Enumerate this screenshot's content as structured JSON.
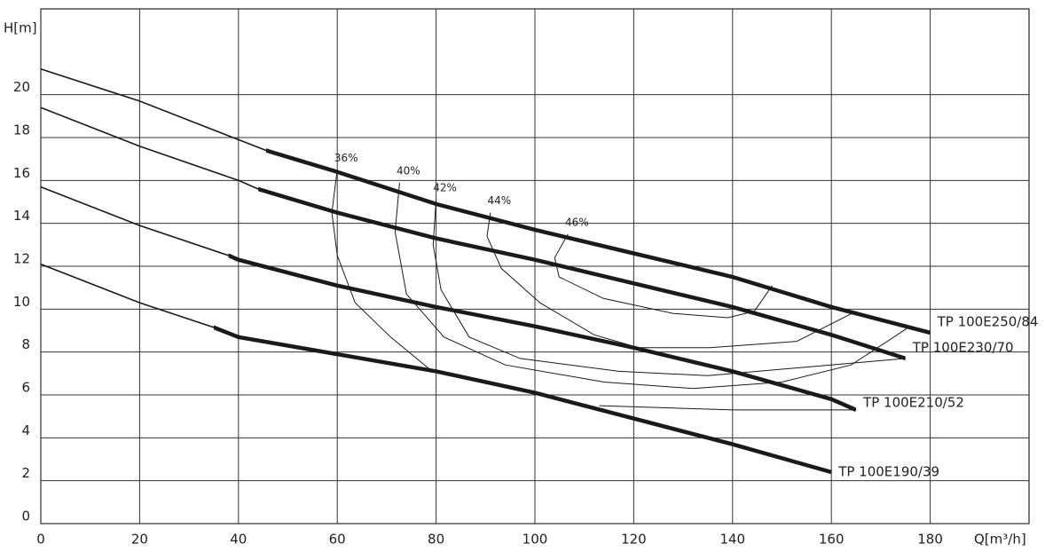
{
  "chart_data": {
    "type": "line",
    "y_label": "H[m]",
    "x_label": "Q[m³/h]",
    "xlim": [
      0,
      200
    ],
    "ylim": [
      0,
      24
    ],
    "xticks": [
      0,
      20,
      40,
      60,
      80,
      100,
      120,
      140,
      160,
      180
    ],
    "yticks": [
      0,
      2,
      4,
      6,
      8,
      10,
      12,
      14,
      16,
      18,
      20
    ],
    "grid": true,
    "color": "#1a1a1a",
    "series": [
      {
        "name": "TP 100E250/84",
        "x": [
          0,
          20,
          40,
          45.6,
          60,
          80,
          100,
          120,
          140,
          160,
          180
        ],
        "values": [
          21.2,
          19.7,
          17.9,
          17.4,
          16.4,
          14.9,
          13.7,
          12.6,
          11.5,
          10.1,
          8.9
        ],
        "bold_xlim": [
          45.6,
          180
        ]
      },
      {
        "name": "TP 100E230/70",
        "x": [
          0,
          20,
          40,
          44,
          60,
          80,
          100,
          120,
          140,
          160,
          175
        ],
        "values": [
          19.4,
          17.6,
          16.0,
          15.6,
          14.5,
          13.3,
          12.3,
          11.2,
          10.1,
          8.8,
          7.7
        ],
        "bold_xlim": [
          44,
          175
        ]
      },
      {
        "name": "TP 100E210/52",
        "x": [
          0,
          20,
          38,
          40,
          60,
          80,
          100,
          120,
          140,
          160,
          165
        ],
        "values": [
          15.7,
          13.9,
          12.5,
          12.3,
          11.1,
          10.1,
          9.2,
          8.2,
          7.1,
          5.8,
          5.3
        ],
        "bold_xlim": [
          38,
          165
        ]
      },
      {
        "name": "TP 100E190/39",
        "x": [
          0,
          20,
          35,
          40,
          60,
          80,
          100,
          120,
          140,
          160
        ],
        "values": [
          12.1,
          10.3,
          9.15,
          8.7,
          7.9,
          7.1,
          6.1,
          4.9,
          3.7,
          2.4
        ],
        "bold_xlim": [
          35,
          160
        ]
      }
    ],
    "efficiency_curves": [
      {
        "label": "36%",
        "x": [
          60,
          58.9,
          60,
          63.6,
          70.8,
          79.2,
          null,
          113,
          140,
          165
        ],
        "values": [
          16.5,
          14.5,
          12.5,
          10.3,
          8.7,
          7.1,
          null,
          5.5,
          5.3,
          5.3
        ]
      },
      {
        "label": "40%",
        "x": [
          72.6,
          71.7,
          74,
          81.6,
          94,
          114,
          132,
          150,
          164,
          175.3
        ],
        "values": [
          15.9,
          13.6,
          10.7,
          8.7,
          7.4,
          6.6,
          6.3,
          6.6,
          7.4,
          9.1
        ]
      },
      {
        "label": "42%",
        "x": [
          80,
          79.4,
          81,
          86.7,
          97,
          117,
          135,
          155,
          175
        ],
        "values": [
          15.1,
          13,
          10.9,
          8.7,
          7.7,
          7.1,
          6.9,
          7.3,
          7.7
        ]
      },
      {
        "label": "44%",
        "x": [
          91,
          90.3,
          93.2,
          101,
          112,
          121,
          135.4,
          153,
          165
        ],
        "values": [
          14.5,
          13.4,
          11.9,
          10.3,
          8.8,
          8.2,
          8.2,
          8.5,
          9.9
        ]
      },
      {
        "label": "46%",
        "x": [
          106.7,
          104,
          104.9,
          113.9,
          128,
          139,
          144.4,
          148
        ],
        "values": [
          13.5,
          12.4,
          11.5,
          10.5,
          9.8,
          9.6,
          9.9,
          11.1
        ]
      }
    ]
  }
}
